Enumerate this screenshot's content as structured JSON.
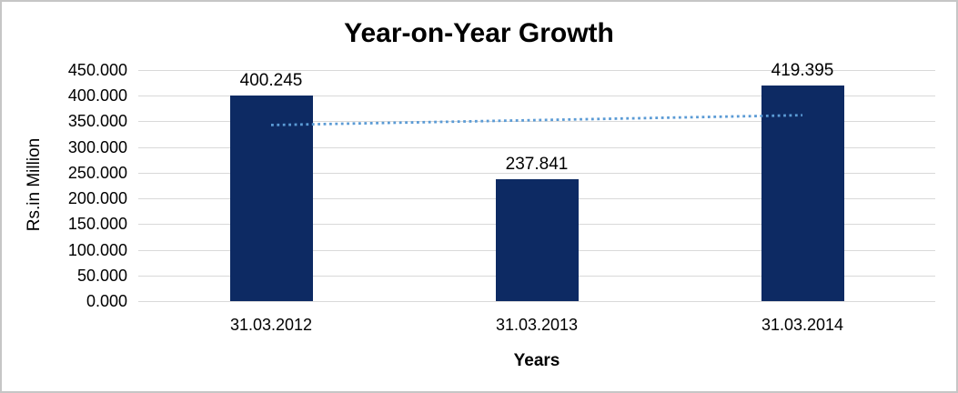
{
  "window": {
    "background_color": "#ffffff",
    "border_color": "#c6c6c6"
  },
  "chart_data": {
    "type": "bar",
    "title": "Year-on-Year Growth",
    "xlabel": "Years",
    "ylabel": "Rs.in Million",
    "categories": [
      "31.03.2012",
      "31.03.2013",
      "31.03.2014"
    ],
    "values": [
      400.245,
      237.841,
      419.395
    ],
    "data_labels": [
      "400.245",
      "237.841",
      "419.395"
    ],
    "ylim": [
      0,
      450
    ],
    "ytick_step": 50,
    "ytick_labels": [
      "0.000",
      "50.000",
      "100.000",
      "150.000",
      "200.000",
      "250.000",
      "300.000",
      "350.000",
      "400.000",
      "450.000"
    ],
    "grid": true,
    "legend": false,
    "bar_color": "#0d2a63",
    "gridline_color": "#d9d9d9",
    "text_color": "#000000",
    "trendline": {
      "style": "dotted",
      "color": "#5b9bd5",
      "start_value": 342.9,
      "end_value": 362.1
    }
  }
}
